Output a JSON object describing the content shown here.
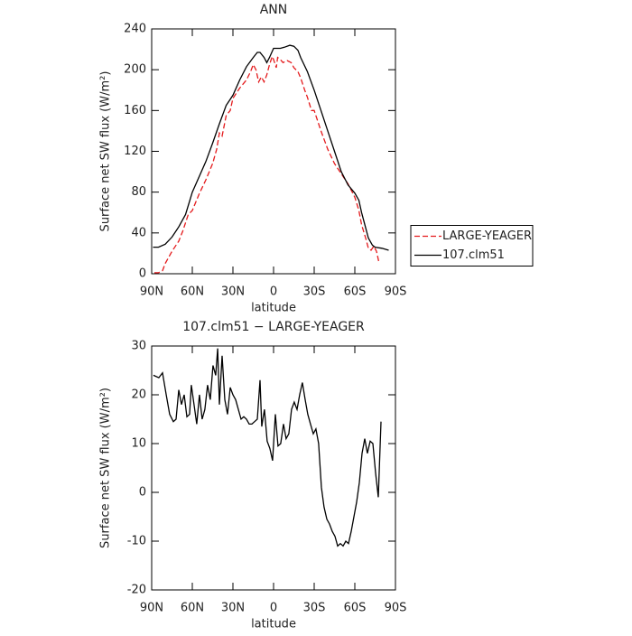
{
  "chart_data": [
    {
      "type": "line",
      "title": "ANN",
      "xlabel": "latitude",
      "ylabel": "Surface net SW flux (W/m²)",
      "xlim": [
        90,
        -90
      ],
      "xticks": [
        {
          "value": 90,
          "label": "90N"
        },
        {
          "value": 60,
          "label": "60N"
        },
        {
          "value": 30,
          "label": "30N"
        },
        0,
        {
          "value": -30,
          "label": "30S"
        },
        {
          "value": -60,
          "label": "60S"
        },
        {
          "value": -90,
          "label": "90S"
        }
      ],
      "ylim": [
        0,
        240
      ],
      "yticks": [
        0,
        40,
        80,
        120,
        160,
        200,
        240
      ],
      "legend": "outside-right",
      "series": [
        {
          "name": "LARGE-YEAGER",
          "color": "#e41a1c",
          "line_style": "dashed",
          "x": [
            88,
            85,
            82,
            80,
            75,
            70,
            67,
            63,
            60,
            55,
            50,
            45,
            42,
            40,
            38,
            35,
            32,
            30,
            25,
            20,
            17,
            15,
            13,
            11,
            9,
            7,
            5,
            3,
            1,
            0,
            -2,
            -3,
            -5,
            -7,
            -10,
            -13,
            -15,
            -18,
            -20,
            -23,
            -25,
            -28,
            -30,
            -33,
            -35,
            -40,
            -45,
            -50,
            -55,
            -60,
            -63,
            -65,
            -68,
            -70,
            -72,
            -74,
            -76,
            -78
          ],
          "values": [
            1,
            1,
            3,
            10,
            22,
            32,
            42,
            58,
            62,
            78,
            92,
            108,
            122,
            138,
            135,
            155,
            160,
            172,
            182,
            190,
            198,
            205,
            200,
            188,
            193,
            188,
            195,
            205,
            213,
            210,
            202,
            212,
            210,
            207,
            209,
            207,
            202,
            198,
            192,
            180,
            173,
            160,
            160,
            148,
            140,
            122,
            108,
            98,
            88,
            75,
            62,
            48,
            35,
            25,
            23,
            27,
            22,
            10
          ]
        },
        {
          "name": "107.clm51",
          "color": "#000000",
          "line_style": "solid",
          "x": [
            89,
            85,
            80,
            75,
            70,
            65,
            60,
            55,
            50,
            45,
            40,
            35,
            30,
            25,
            20,
            15,
            12,
            10,
            7,
            5,
            3,
            0,
            -3,
            -5,
            -8,
            -12,
            -15,
            -18,
            -20,
            -25,
            -30,
            -35,
            -40,
            -45,
            -50,
            -55,
            -60,
            -63,
            -65,
            -68,
            -70,
            -73,
            -75,
            -80,
            -85
          ],
          "values": [
            26,
            26,
            29,
            36,
            46,
            58,
            80,
            95,
            110,
            128,
            147,
            165,
            175,
            190,
            203,
            212,
            217,
            217,
            212,
            207,
            212,
            221,
            221,
            221,
            222,
            224,
            223,
            219,
            212,
            198,
            180,
            160,
            140,
            120,
            100,
            87,
            79,
            72,
            60,
            45,
            35,
            28,
            26,
            25,
            23
          ]
        }
      ]
    },
    {
      "type": "line",
      "title": "107.clm51 − LARGE-YEAGER",
      "xlabel": "latitude",
      "ylabel": "Surface net SW flux (W/m²)",
      "xlim": [
        90,
        -90
      ],
      "xticks": [
        {
          "value": 90,
          "label": "90N"
        },
        {
          "value": 60,
          "label": "60N"
        },
        {
          "value": 30,
          "label": "30N"
        },
        0,
        {
          "value": -30,
          "label": "30S"
        },
        {
          "value": -60,
          "label": "60S"
        },
        {
          "value": -90,
          "label": "90S"
        }
      ],
      "ylim": [
        -20,
        30
      ],
      "yticks": [
        -20,
        -10,
        0,
        10,
        20,
        30
      ],
      "series": [
        {
          "color": "#000000",
          "line_style": "solid",
          "x": [
            88.7,
            84.7,
            82,
            79.3,
            76.7,
            74,
            72,
            70,
            68,
            66,
            64,
            62,
            60.7,
            58.7,
            56.7,
            54.7,
            52.7,
            50.7,
            48.7,
            46.7,
            44.7,
            42.7,
            41.3,
            40,
            38,
            36,
            34,
            32,
            30,
            28,
            26,
            24,
            22,
            20,
            18,
            16,
            14,
            12,
            10,
            8.7,
            6.7,
            4.7,
            2.7,
            0.7,
            -1.3,
            -3.3,
            -5.3,
            -7.3,
            -9.3,
            -11.3,
            -13.3,
            -15.3,
            -17.3,
            -19.3,
            -21.3,
            -23.3,
            -25.3,
            -27.3,
            -29.3,
            -31.3,
            -33.3,
            -35.3,
            -37.3,
            -39.3,
            -41.3,
            -43.3,
            -45.3,
            -47.3,
            -49.3,
            -51.3,
            -53.3,
            -55.3,
            -57.3,
            -59.3,
            -61.3,
            -63.3,
            -65.3,
            -67.3,
            -69.3,
            -71.3,
            -73.3,
            -75.3,
            -77.3,
            -79.3
          ],
          "values": [
            24,
            23.5,
            24.5,
            20,
            16,
            14.5,
            15,
            21,
            18,
            20,
            15.5,
            16,
            22,
            18,
            14,
            20,
            15,
            17,
            22,
            19,
            26,
            24,
            29.5,
            18,
            28,
            19,
            16,
            21.5,
            20,
            19,
            17,
            15,
            15.5,
            15,
            14,
            14,
            14.5,
            15,
            23,
            13.5,
            17,
            10.5,
            9,
            6.5,
            16,
            9.5,
            10,
            14,
            11,
            12,
            17,
            18.5,
            17,
            20,
            22.5,
            19,
            16,
            14,
            12,
            13,
            10,
            1,
            -3,
            -5.5,
            -6.5,
            -8,
            -9,
            -11,
            -10.5,
            -11,
            -10,
            -10.5,
            -8,
            -5,
            -2,
            2,
            8,
            11,
            8,
            10.5,
            10,
            4,
            -1,
            14.5
          ]
        }
      ]
    }
  ]
}
